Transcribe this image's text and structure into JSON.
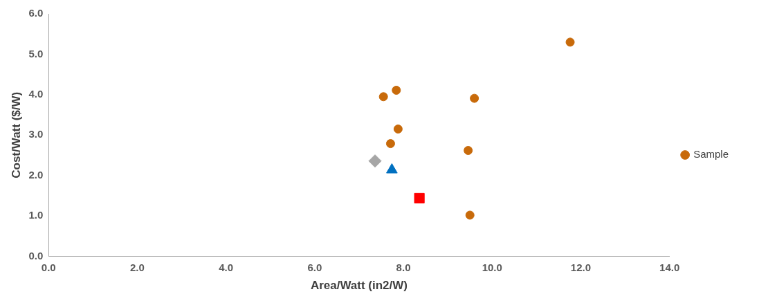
{
  "chart_data": {
    "type": "scatter",
    "xlabel": "Area/Watt (in2/W)",
    "ylabel": "Cost/Watt ($/W)",
    "xlim": [
      0,
      14
    ],
    "xticks": [
      {
        "value": 0,
        "label": "0.0"
      },
      {
        "value": 2,
        "label": "2.0"
      },
      {
        "value": 4,
        "label": "4.0"
      },
      {
        "value": 6,
        "label": "6.0"
      },
      {
        "value": 8,
        "label": "8.0"
      },
      {
        "value": 10,
        "label": "10.0"
      },
      {
        "value": 12,
        "label": "12.0"
      },
      {
        "value": 14,
        "label": "14.0"
      }
    ],
    "ylim": [
      0,
      6
    ],
    "yticks": [
      {
        "value": 0,
        "label": "0.0"
      },
      {
        "value": 1,
        "label": "1.0"
      },
      {
        "value": 2,
        "label": "2.0"
      },
      {
        "value": 3,
        "label": "3.0"
      },
      {
        "value": 4,
        "label": "4.0"
      },
      {
        "value": 5,
        "label": "5.0"
      },
      {
        "value": 6,
        "label": "6.0"
      }
    ],
    "grid": false,
    "legend": "right",
    "series": [
      {
        "name": "Sample",
        "color": "#c86a0a",
        "marker": "circle",
        "x": [
          11.76,
          7.55,
          7.84,
          9.6,
          7.88,
          7.71,
          9.46,
          9.5
        ],
        "values": [
          5.3,
          3.95,
          4.11,
          3.91,
          3.15,
          2.79,
          2.62,
          1.02
        ]
      },
      {
        "color": "#ff0000",
        "marker": "square",
        "x": [
          8.36
        ],
        "values": [
          1.44
        ]
      },
      {
        "color": "#a6a6a6",
        "marker": "diamond",
        "x": [
          7.36
        ],
        "values": [
          2.36
        ]
      },
      {
        "color": "#0070c0",
        "marker": "triangle",
        "x": [
          7.74
        ],
        "values": [
          2.14
        ]
      }
    ]
  }
}
